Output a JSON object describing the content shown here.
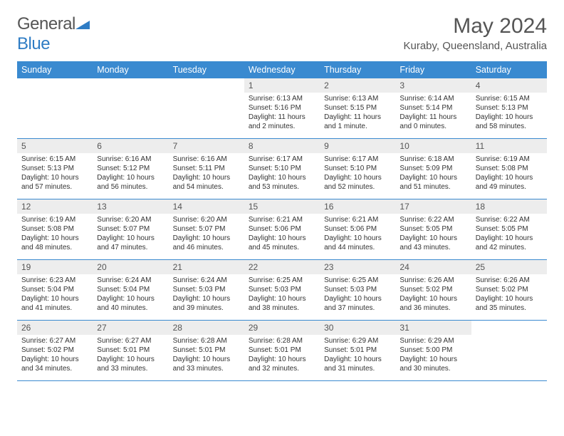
{
  "logo": {
    "part1": "General",
    "part2": "Blue"
  },
  "title": "May 2024",
  "location": "Kuraby, Queensland, Australia",
  "headers": [
    "Sunday",
    "Monday",
    "Tuesday",
    "Wednesday",
    "Thursday",
    "Friday",
    "Saturday"
  ],
  "colors": {
    "header_bg": "#3a8ad0",
    "header_text": "#ffffff",
    "daynum_bg": "#ededed",
    "border": "#3a8ad0",
    "title_color": "#555555",
    "logo_blue": "#2e7cc4"
  },
  "fonts": {
    "title_size": 30,
    "location_size": 15,
    "header_size": 12.5,
    "daynum_size": 12,
    "content_size": 10
  },
  "layout": {
    "columns": 7,
    "rows": 5,
    "first_day_column": 3
  },
  "weeks": [
    [
      null,
      null,
      null,
      {
        "n": "1",
        "sr": "6:13 AM",
        "ss": "5:16 PM",
        "dl": "11 hours and 2 minutes."
      },
      {
        "n": "2",
        "sr": "6:13 AM",
        "ss": "5:15 PM",
        "dl": "11 hours and 1 minute."
      },
      {
        "n": "3",
        "sr": "6:14 AM",
        "ss": "5:14 PM",
        "dl": "11 hours and 0 minutes."
      },
      {
        "n": "4",
        "sr": "6:15 AM",
        "ss": "5:13 PM",
        "dl": "10 hours and 58 minutes."
      }
    ],
    [
      {
        "n": "5",
        "sr": "6:15 AM",
        "ss": "5:13 PM",
        "dl": "10 hours and 57 minutes."
      },
      {
        "n": "6",
        "sr": "6:16 AM",
        "ss": "5:12 PM",
        "dl": "10 hours and 56 minutes."
      },
      {
        "n": "7",
        "sr": "6:16 AM",
        "ss": "5:11 PM",
        "dl": "10 hours and 54 minutes."
      },
      {
        "n": "8",
        "sr": "6:17 AM",
        "ss": "5:10 PM",
        "dl": "10 hours and 53 minutes."
      },
      {
        "n": "9",
        "sr": "6:17 AM",
        "ss": "5:10 PM",
        "dl": "10 hours and 52 minutes."
      },
      {
        "n": "10",
        "sr": "6:18 AM",
        "ss": "5:09 PM",
        "dl": "10 hours and 51 minutes."
      },
      {
        "n": "11",
        "sr": "6:19 AM",
        "ss": "5:08 PM",
        "dl": "10 hours and 49 minutes."
      }
    ],
    [
      {
        "n": "12",
        "sr": "6:19 AM",
        "ss": "5:08 PM",
        "dl": "10 hours and 48 minutes."
      },
      {
        "n": "13",
        "sr": "6:20 AM",
        "ss": "5:07 PM",
        "dl": "10 hours and 47 minutes."
      },
      {
        "n": "14",
        "sr": "6:20 AM",
        "ss": "5:07 PM",
        "dl": "10 hours and 46 minutes."
      },
      {
        "n": "15",
        "sr": "6:21 AM",
        "ss": "5:06 PM",
        "dl": "10 hours and 45 minutes."
      },
      {
        "n": "16",
        "sr": "6:21 AM",
        "ss": "5:06 PM",
        "dl": "10 hours and 44 minutes."
      },
      {
        "n": "17",
        "sr": "6:22 AM",
        "ss": "5:05 PM",
        "dl": "10 hours and 43 minutes."
      },
      {
        "n": "18",
        "sr": "6:22 AM",
        "ss": "5:05 PM",
        "dl": "10 hours and 42 minutes."
      }
    ],
    [
      {
        "n": "19",
        "sr": "6:23 AM",
        "ss": "5:04 PM",
        "dl": "10 hours and 41 minutes."
      },
      {
        "n": "20",
        "sr": "6:24 AM",
        "ss": "5:04 PM",
        "dl": "10 hours and 40 minutes."
      },
      {
        "n": "21",
        "sr": "6:24 AM",
        "ss": "5:03 PM",
        "dl": "10 hours and 39 minutes."
      },
      {
        "n": "22",
        "sr": "6:25 AM",
        "ss": "5:03 PM",
        "dl": "10 hours and 38 minutes."
      },
      {
        "n": "23",
        "sr": "6:25 AM",
        "ss": "5:03 PM",
        "dl": "10 hours and 37 minutes."
      },
      {
        "n": "24",
        "sr": "6:26 AM",
        "ss": "5:02 PM",
        "dl": "10 hours and 36 minutes."
      },
      {
        "n": "25",
        "sr": "6:26 AM",
        "ss": "5:02 PM",
        "dl": "10 hours and 35 minutes."
      }
    ],
    [
      {
        "n": "26",
        "sr": "6:27 AM",
        "ss": "5:02 PM",
        "dl": "10 hours and 34 minutes."
      },
      {
        "n": "27",
        "sr": "6:27 AM",
        "ss": "5:01 PM",
        "dl": "10 hours and 33 minutes."
      },
      {
        "n": "28",
        "sr": "6:28 AM",
        "ss": "5:01 PM",
        "dl": "10 hours and 33 minutes."
      },
      {
        "n": "29",
        "sr": "6:28 AM",
        "ss": "5:01 PM",
        "dl": "10 hours and 32 minutes."
      },
      {
        "n": "30",
        "sr": "6:29 AM",
        "ss": "5:01 PM",
        "dl": "10 hours and 31 minutes."
      },
      {
        "n": "31",
        "sr": "6:29 AM",
        "ss": "5:00 PM",
        "dl": "10 hours and 30 minutes."
      },
      null
    ]
  ],
  "labels": {
    "sunrise": "Sunrise: ",
    "sunset": "Sunset: ",
    "daylight": "Daylight: "
  }
}
